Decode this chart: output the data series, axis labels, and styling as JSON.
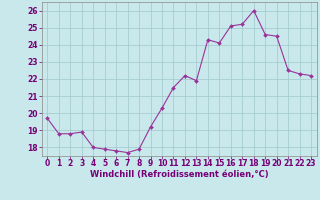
{
  "x": [
    0,
    1,
    2,
    3,
    4,
    5,
    6,
    7,
    8,
    9,
    10,
    11,
    12,
    13,
    14,
    15,
    16,
    17,
    18,
    19,
    20,
    21,
    22,
    23
  ],
  "y": [
    19.7,
    18.8,
    18.8,
    18.9,
    18.0,
    17.9,
    17.8,
    17.7,
    17.9,
    19.2,
    20.3,
    21.5,
    22.2,
    21.9,
    24.3,
    24.1,
    25.1,
    25.2,
    26.0,
    24.6,
    24.5,
    22.5,
    22.3,
    22.2
  ],
  "line_color": "#993399",
  "marker_color": "#993399",
  "bg_color": "#c8e8ec",
  "grid_color": "#a0c8cc",
  "xlabel": "Windchill (Refroidissement éolien,°C)",
  "xlim": [
    -0.5,
    23.5
  ],
  "ylim": [
    17.5,
    26.5
  ],
  "yticks": [
    18,
    19,
    20,
    21,
    22,
    23,
    24,
    25,
    26
  ],
  "xticks": [
    0,
    1,
    2,
    3,
    4,
    5,
    6,
    7,
    8,
    9,
    10,
    11,
    12,
    13,
    14,
    15,
    16,
    17,
    18,
    19,
    20,
    21,
    22,
    23
  ],
  "tick_label_size": 5.5,
  "xlabel_size": 6.0,
  "label_color": "#770077"
}
